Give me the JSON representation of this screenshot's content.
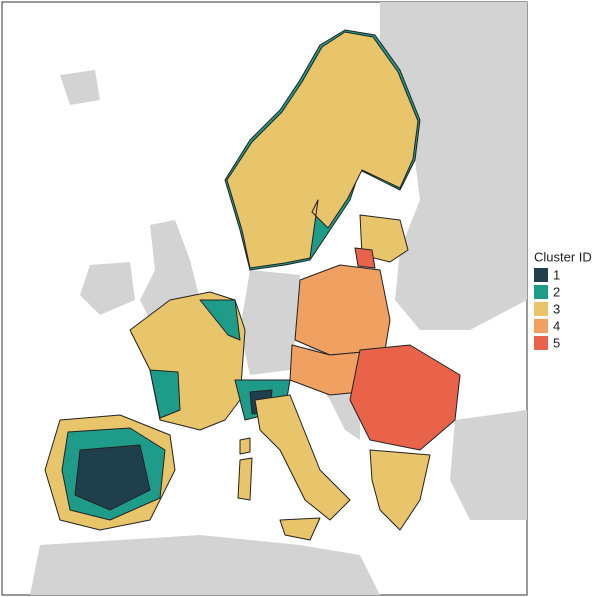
{
  "legend": {
    "title": "Cluster ID",
    "items": [
      {
        "label": "1",
        "color": "#1f3f4d"
      },
      {
        "label": "2",
        "color": "#1f9b8a"
      },
      {
        "label": "3",
        "color": "#e8c46a"
      },
      {
        "label": "4",
        "color": "#f0a060"
      },
      {
        "label": "5",
        "color": "#e8634a"
      }
    ]
  }
}
